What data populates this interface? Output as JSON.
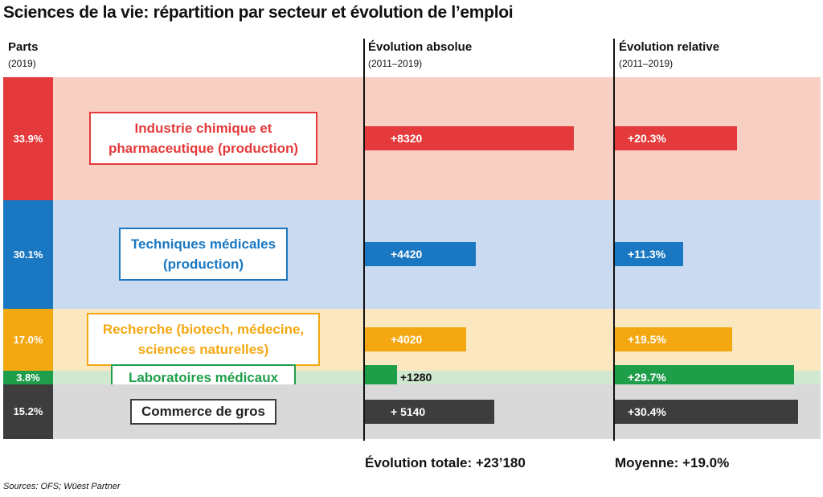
{
  "title": "Sciences de la vie: répartition par secteur et évolution de l’emploi",
  "headers": {
    "parts": {
      "label": "Parts",
      "sub": "(2019)"
    },
    "abs": {
      "label": "Évolution absolue",
      "sub": "(2011–2019)"
    },
    "rel": {
      "label": "Évolution relative",
      "sub": "(2011–2019)"
    }
  },
  "chart_data": {
    "type": "bar",
    "categories": [
      "Industrie chimique et\npharmaceutique (production)",
      "Techniques médicales\n(production)",
      "Recherche (biotech, médecine,\nsciences naturelles)",
      "Laboratoires médicaux",
      "Commerce de gros"
    ],
    "colors": [
      "#e43a3b",
      "#1a78c2",
      "#f3a812",
      "#1f9e4a",
      "#3d3d3d"
    ],
    "band_colors": [
      "#f8cfc3",
      "#cadaf1",
      "#fbe7c0",
      "#cfe8cf",
      "#d9d9d9"
    ],
    "shares": [
      33.9,
      30.1,
      17.0,
      3.8,
      15.2
    ],
    "share_labels": [
      "33.9%",
      "30.1%",
      "17.0%",
      "3.8%",
      "15.2%"
    ],
    "absolute": {
      "values": [
        8320,
        4420,
        4020,
        1280,
        5140
      ],
      "labels": [
        "+8320",
        "+4420",
        "+4020",
        "+1280",
        "+ 5140"
      ],
      "xlim": [
        0,
        9600
      ]
    },
    "relative": {
      "values": [
        20.3,
        11.3,
        19.5,
        29.7,
        30.4
      ],
      "labels": [
        "+20.3%",
        "+11.3%",
        "+19.5%",
        "+29.7%",
        "+30.4%"
      ],
      "xlim": [
        0,
        32
      ]
    }
  },
  "totals": {
    "absolute": "Évolution totale: +23’180",
    "relative": "Moyenne: +19.0%"
  },
  "source": "Sources: OFS; Wüest Partner"
}
